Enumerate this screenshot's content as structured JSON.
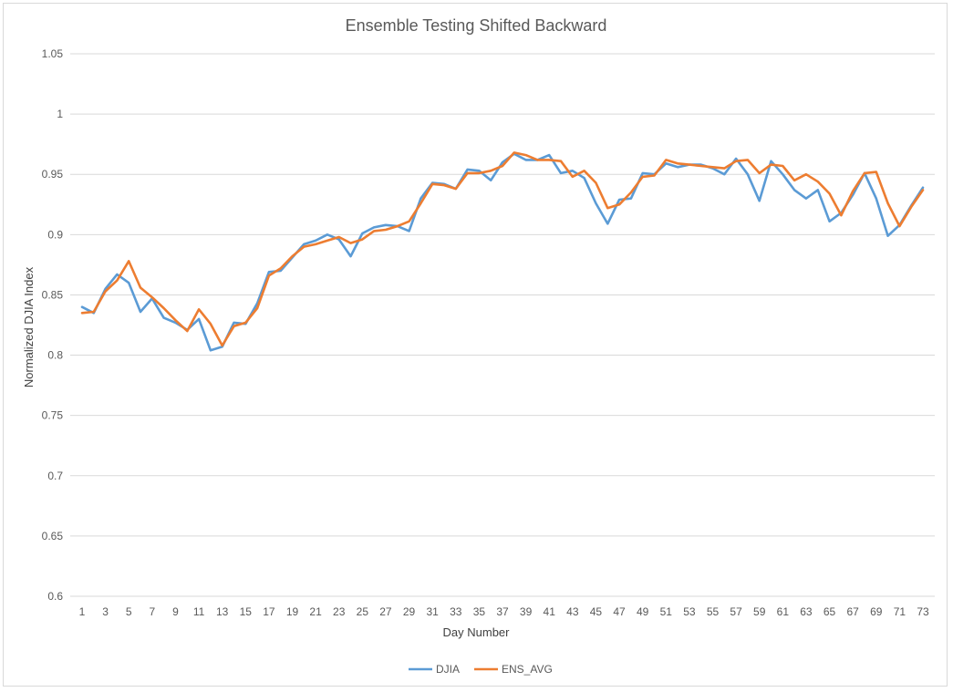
{
  "chart_data": {
    "type": "line",
    "title": "Ensemble Testing Shifted Backward",
    "xlabel": "Day Number",
    "ylabel": "Normalized DJIA Index",
    "ylim": [
      0.6,
      1.05
    ],
    "xlim": [
      1,
      73
    ],
    "ytick_labels": [
      "0.6",
      "0.65",
      "0.7",
      "0.75",
      "0.8",
      "0.85",
      "0.9",
      "0.95",
      "1",
      "1.05"
    ],
    "ytick_values": [
      0.6,
      0.65,
      0.7,
      0.75,
      0.8,
      0.85,
      0.9,
      0.95,
      1.0,
      1.05
    ],
    "xtick_labels": [
      "1",
      "3",
      "5",
      "7",
      "9",
      "11",
      "13",
      "15",
      "17",
      "19",
      "21",
      "23",
      "25",
      "27",
      "29",
      "31",
      "33",
      "35",
      "37",
      "39",
      "41",
      "43",
      "45",
      "47",
      "49",
      "51",
      "53",
      "55",
      "57",
      "59",
      "61",
      "63",
      "65",
      "67",
      "69",
      "71",
      "73"
    ],
    "grid": true,
    "legend_position": "bottom",
    "x": [
      1,
      2,
      3,
      4,
      5,
      6,
      7,
      8,
      9,
      10,
      11,
      12,
      13,
      14,
      15,
      16,
      17,
      18,
      19,
      20,
      21,
      22,
      23,
      24,
      25,
      26,
      27,
      28,
      29,
      30,
      31,
      32,
      33,
      34,
      35,
      36,
      37,
      38,
      39,
      40,
      41,
      42,
      43,
      44,
      45,
      46,
      47,
      48,
      49,
      50,
      51,
      52,
      53,
      54,
      55,
      56,
      57,
      58,
      59,
      60,
      61,
      62,
      63,
      64,
      65,
      66,
      67,
      68,
      69,
      70,
      71,
      72,
      73
    ],
    "series": [
      {
        "name": "DJIA",
        "color": "#5b9bd5",
        "values": [
          0.84,
          0.835,
          0.855,
          0.867,
          0.86,
          0.836,
          0.847,
          0.831,
          0.827,
          0.821,
          0.83,
          0.804,
          0.807,
          0.827,
          0.826,
          0.843,
          0.869,
          0.87,
          0.881,
          0.892,
          0.895,
          0.9,
          0.896,
          0.882,
          0.901,
          0.906,
          0.908,
          0.907,
          0.903,
          0.93,
          0.943,
          0.942,
          0.938,
          0.954,
          0.953,
          0.945,
          0.96,
          0.967,
          0.962,
          0.962,
          0.966,
          0.951,
          0.953,
          0.947,
          0.926,
          0.909,
          0.929,
          0.93,
          0.951,
          0.95,
          0.959,
          0.956,
          0.958,
          0.958,
          0.955,
          0.95,
          0.963,
          0.95,
          0.928,
          0.961,
          0.95,
          0.937,
          0.93,
          0.937,
          0.911,
          0.918,
          0.933,
          0.951,
          0.93,
          0.899,
          0.908,
          0.924,
          0.939
        ]
      },
      {
        "name": "ENS_AVG",
        "color": "#ed7d31",
        "values": [
          0.835,
          0.836,
          0.853,
          0.862,
          0.878,
          0.856,
          0.848,
          0.839,
          0.829,
          0.82,
          0.838,
          0.826,
          0.808,
          0.824,
          0.827,
          0.839,
          0.866,
          0.872,
          0.882,
          0.89,
          0.892,
          0.895,
          0.898,
          0.893,
          0.896,
          0.903,
          0.904,
          0.907,
          0.911,
          0.926,
          0.942,
          0.941,
          0.938,
          0.951,
          0.951,
          0.953,
          0.957,
          0.968,
          0.966,
          0.962,
          0.962,
          0.961,
          0.948,
          0.953,
          0.943,
          0.922,
          0.925,
          0.935,
          0.948,
          0.949,
          0.962,
          0.959,
          0.958,
          0.957,
          0.956,
          0.955,
          0.961,
          0.962,
          0.951,
          0.958,
          0.957,
          0.945,
          0.95,
          0.944,
          0.934,
          0.916,
          0.936,
          0.951,
          0.952,
          0.926,
          0.907,
          0.923,
          0.937
        ]
      }
    ]
  }
}
